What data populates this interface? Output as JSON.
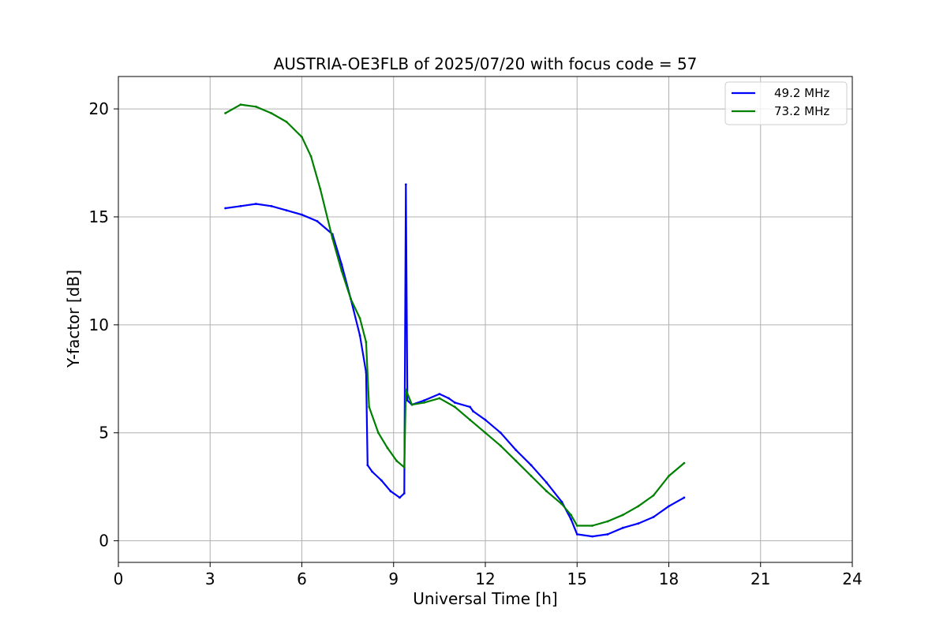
{
  "chart_data": {
    "type": "line",
    "title": "AUSTRIA-OE3FLB of 2025/07/20 with focus code = 57",
    "xlabel": "Universal Time [h]",
    "ylabel": "Y-factor [dB]",
    "xlim": [
      0,
      24
    ],
    "ylim": [
      -1,
      21.5
    ],
    "xticks": [
      "0",
      "3",
      "6",
      "9",
      "12",
      "15",
      "18",
      "21",
      "24"
    ],
    "yticks": [
      "0",
      "5",
      "10",
      "15",
      "20"
    ],
    "grid": true,
    "legend_position": "top-right",
    "series": [
      {
        "name": "49.2 MHz",
        "color": "#0000ff",
        "x": [
          3.5,
          4.0,
          4.5,
          5.0,
          5.5,
          6.0,
          6.5,
          7.0,
          7.3,
          7.6,
          7.9,
          8.1,
          8.15,
          8.3,
          8.6,
          8.9,
          9.2,
          9.35,
          9.4,
          9.45,
          9.6,
          10.0,
          10.5,
          10.8,
          11.0,
          11.5,
          11.6,
          12.0,
          12.5,
          13.0,
          13.5,
          14.0,
          14.5,
          14.8,
          15.0,
          15.5,
          16.0,
          16.5,
          17.0,
          17.5,
          18.0,
          18.5
        ],
        "y": [
          15.4,
          15.5,
          15.6,
          15.5,
          15.3,
          15.1,
          14.8,
          14.2,
          12.8,
          11.2,
          9.5,
          7.8,
          3.5,
          3.2,
          2.8,
          2.3,
          2.0,
          2.2,
          16.5,
          6.5,
          6.3,
          6.5,
          6.8,
          6.6,
          6.4,
          6.2,
          6.0,
          5.6,
          5.0,
          4.2,
          3.5,
          2.7,
          1.8,
          1.0,
          0.3,
          0.2,
          0.3,
          0.6,
          0.8,
          1.1,
          1.6,
          2.0
        ]
      },
      {
        "name": "73.2 MHz",
        "color": "#008000",
        "x": [
          3.5,
          4.0,
          4.5,
          5.0,
          5.5,
          6.0,
          6.3,
          6.6,
          7.0,
          7.3,
          7.6,
          7.9,
          8.1,
          8.2,
          8.5,
          8.8,
          9.1,
          9.35,
          9.4,
          9.6,
          10.0,
          10.5,
          11.0,
          11.5,
          12.0,
          12.5,
          13.0,
          13.5,
          14.0,
          14.5,
          14.8,
          15.0,
          15.5,
          16.0,
          16.5,
          17.0,
          17.5,
          18.0,
          18.5
        ],
        "y": [
          19.8,
          20.2,
          20.1,
          19.8,
          19.4,
          18.7,
          17.8,
          16.3,
          14.0,
          12.5,
          11.2,
          10.3,
          9.2,
          6.2,
          5.0,
          4.3,
          3.7,
          3.4,
          7.0,
          6.3,
          6.4,
          6.6,
          6.2,
          5.6,
          5.0,
          4.4,
          3.7,
          3.0,
          2.3,
          1.7,
          1.2,
          0.7,
          0.7,
          0.9,
          1.2,
          1.6,
          2.1,
          3.0,
          3.6
        ]
      }
    ]
  }
}
